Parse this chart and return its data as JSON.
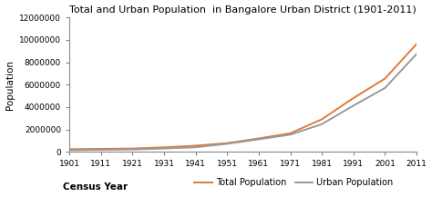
{
  "title": "Total and Urban Population  in Bangalore Urban District (1901-2011)",
  "xlabel": "Census Year",
  "ylabel": "Population",
  "years": [
    1901,
    1911,
    1921,
    1931,
    1941,
    1951,
    1961,
    1971,
    1981,
    1991,
    2001,
    2011
  ],
  "total_population": [
    245335,
    274098,
    306644,
    409050,
    560087,
    786343,
    1206961,
    1664087,
    2913537,
    4802224,
    6537124,
    9621551
  ],
  "urban_population": [
    161046,
    189485,
    220149,
    306470,
    418986,
    728137,
    1126916,
    1540457,
    2476000,
    4130288,
    5701446,
    8728906
  ],
  "total_color": "#E07B3A",
  "urban_color": "#999999",
  "background_color": "#FFFFFF",
  "legend_total": "Total Population",
  "legend_urban": "Urban Population",
  "ylim": [
    0,
    12000000
  ],
  "yticks": [
    0,
    2000000,
    4000000,
    6000000,
    8000000,
    10000000,
    12000000
  ],
  "title_fontsize": 8.0,
  "axis_label_fontsize": 7.5,
  "tick_fontsize": 6.5,
  "legend_fontsize": 7.0,
  "line_width": 1.4
}
